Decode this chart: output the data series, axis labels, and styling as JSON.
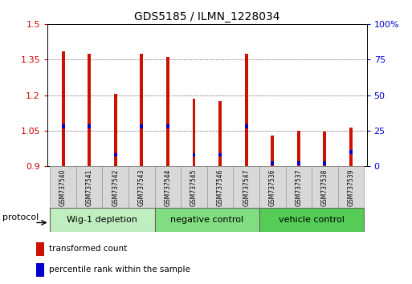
{
  "title": "GDS5185 / ILMN_1228034",
  "samples": [
    "GSM737540",
    "GSM737541",
    "GSM737542",
    "GSM737543",
    "GSM737544",
    "GSM737545",
    "GSM737546",
    "GSM737547",
    "GSM737536",
    "GSM737537",
    "GSM737538",
    "GSM737539"
  ],
  "red_values": [
    1.385,
    1.375,
    1.205,
    1.375,
    1.36,
    1.185,
    1.175,
    1.375,
    1.03,
    1.048,
    1.047,
    1.063
  ],
  "blue_pct": [
    28,
    28,
    8,
    28,
    28,
    8,
    8,
    28,
    2,
    2,
    2,
    10
  ],
  "ymin": 0.9,
  "ymax": 1.5,
  "yticks": [
    0.9,
    1.05,
    1.2,
    1.35,
    1.5
  ],
  "right_yticks": [
    0,
    25,
    50,
    75,
    100
  ],
  "groups": [
    {
      "label": "Wig-1 depletion",
      "start": 0,
      "end": 4,
      "color": "#c0eec0"
    },
    {
      "label": "negative control",
      "start": 4,
      "end": 8,
      "color": "#80dd80"
    },
    {
      "label": "vehicle control",
      "start": 8,
      "end": 12,
      "color": "#55cc55"
    }
  ],
  "bar_width": 0.12,
  "red_color": "#cc1100",
  "blue_color": "#0000cc",
  "tick_label_color_left": "#cc0000",
  "tick_label_color_right": "#0000cc",
  "legend_red": "transformed count",
  "legend_blue": "percentile rank within the sample",
  "protocol_label": "protocol"
}
